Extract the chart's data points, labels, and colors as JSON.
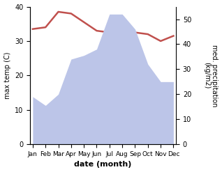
{
  "months": [
    "Jan",
    "Feb",
    "Mar",
    "Apr",
    "May",
    "Jun",
    "Jul",
    "Aug",
    "Sep",
    "Oct",
    "Nov",
    "Dec"
  ],
  "max_temp": [
    33.5,
    34.0,
    38.5,
    38.0,
    35.5,
    33.0,
    32.5,
    32.5,
    32.5,
    32.0,
    30.0,
    31.5
  ],
  "precipitation": [
    19.0,
    15.5,
    20.0,
    34.0,
    35.5,
    38.0,
    52.0,
    52.0,
    46.0,
    32.0,
    25.0,
    25.0
  ],
  "temp_color": "#c0504d",
  "precip_fill_color": "#bcc5e8",
  "ylabel_left": "max temp (C)",
  "ylabel_right": "med. precipitation\n(kg/m2)",
  "xlabel": "date (month)",
  "ylim_left": [
    0,
    40
  ],
  "ylim_right": [
    0,
    55
  ],
  "yticks_left": [
    0,
    10,
    20,
    30,
    40
  ],
  "yticks_right": [
    0,
    10,
    20,
    30,
    40,
    50
  ],
  "background_color": "#ffffff"
}
